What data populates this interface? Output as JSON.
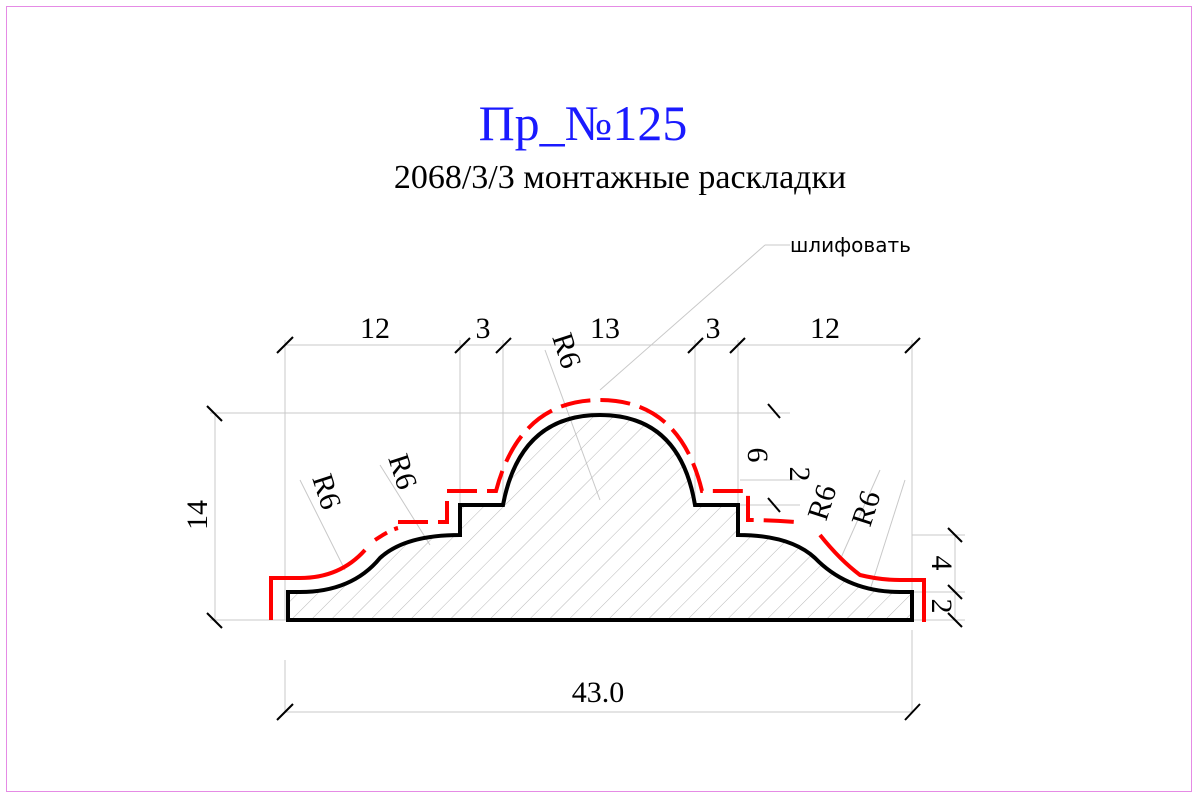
{
  "title": "Пр_№125",
  "subtitle": "2068/3/3 монтажные раскладки",
  "note": "шлифовать",
  "dimensions": {
    "top": [
      "12",
      "3",
      "13",
      "3",
      "12"
    ],
    "height": "14",
    "width": "43.0",
    "right": [
      "6",
      "2",
      "4",
      "2"
    ],
    "radii": [
      "R6",
      "R6",
      "R6",
      "R6",
      "R6"
    ]
  },
  "colors": {
    "title": "#1a1aff",
    "outline": "#000000",
    "sanding": "#ff0000",
    "hatch": "#b0b0b0",
    "hatch_inner": "#d08080",
    "dim": "#c8c8c8",
    "frame": "#e58be5"
  }
}
